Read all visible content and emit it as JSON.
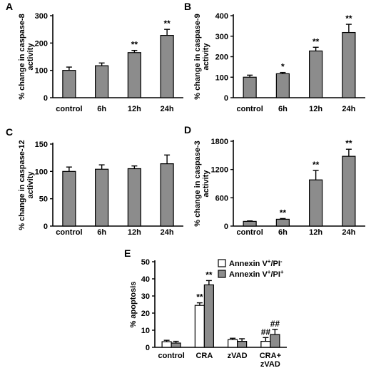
{
  "chart_data": [
    {
      "panel": "A",
      "type": "bar",
      "categories": [
        "control",
        "6h",
        "12h",
        "24h"
      ],
      "series": [
        {
          "values": [
            100,
            117,
            165,
            228
          ],
          "errors": [
            12,
            10,
            8,
            22
          ],
          "color": "#8c8c8c"
        }
      ],
      "annotations": [
        "",
        "",
        "**",
        "**"
      ],
      "ylabel_lines": [
        "% change in caspase-8",
        "activity"
      ],
      "yticks": [
        "0",
        "100",
        "200",
        "300"
      ],
      "ylim": [
        0,
        300
      ]
    },
    {
      "panel": "B",
      "type": "bar",
      "categories": [
        "control",
        "6h",
        "12h",
        "24h"
      ],
      "series": [
        {
          "values": [
            100,
            117,
            228,
            318
          ],
          "errors": [
            10,
            6,
            18,
            40
          ],
          "color": "#8c8c8c"
        }
      ],
      "annotations": [
        "",
        "*",
        "**",
        "**"
      ],
      "ylabel_lines": [
        "% change in caspase-9",
        "activity"
      ],
      "yticks": [
        "0",
        "100",
        "200",
        "300",
        "400"
      ],
      "ylim": [
        0,
        400
      ]
    },
    {
      "panel": "C",
      "type": "bar",
      "categories": [
        "control",
        "6h",
        "12h",
        "24h"
      ],
      "series": [
        {
          "values": [
            100,
            104,
            105,
            114
          ],
          "errors": [
            8,
            8,
            5,
            16
          ],
          "color": "#8c8c8c"
        }
      ],
      "annotations": [
        "",
        "",
        "",
        ""
      ],
      "ylabel_lines": [
        "% change in caspase-12",
        "activity"
      ],
      "yticks": [
        "0",
        "50",
        "100",
        "150"
      ],
      "ylim": [
        0,
        150
      ]
    },
    {
      "panel": "D",
      "type": "bar",
      "categories": [
        "control",
        "6h",
        "12h",
        "24h"
      ],
      "series": [
        {
          "values": [
            100,
            145,
            980,
            1480
          ],
          "errors": [
            10,
            15,
            200,
            150
          ],
          "color": "#8c8c8c"
        }
      ],
      "annotations": [
        "",
        "**",
        "**",
        "**"
      ],
      "ylabel_lines": [
        "% change in caspase-3",
        "activity"
      ],
      "yticks": [
        "0",
        "600",
        "1200",
        "1800"
      ],
      "ylim": [
        0,
        1800
      ]
    },
    {
      "panel": "E",
      "type": "bar",
      "categories": [
        "control",
        "CRA",
        "zVAD",
        "CRA+|zVAD"
      ],
      "series": [
        {
          "name": "Annexin V+/PI-",
          "values": [
            3.3,
            24.5,
            4.5,
            3.5
          ],
          "errors": [
            0.8,
            1.5,
            0.8,
            2.2
          ],
          "color": "#ffffff"
        },
        {
          "name": "Annexin V+/PI+",
          "values": [
            2.5,
            36.5,
            3.5,
            7.5
          ],
          "errors": [
            1.0,
            2.5,
            1.5,
            3.0
          ],
          "color": "#8c8c8c"
        }
      ],
      "annotations": [
        [
          "",
          "**",
          "",
          "##"
        ],
        [
          "",
          "**",
          "",
          "##"
        ]
      ],
      "ylabel_lines": [
        "% apoptosis"
      ],
      "yticks": [
        "0",
        "10",
        "20",
        "30",
        "40",
        "50"
      ],
      "ylim": [
        0,
        50
      ],
      "legend": {
        "entries": [
          {
            "main": "Annexin V",
            "sup1": "+",
            "mid": "/PI",
            "sup2": "-"
          },
          {
            "main": "Annexin V",
            "sup1": "+",
            "mid": "/PI",
            "sup2": "+"
          }
        ]
      }
    }
  ]
}
